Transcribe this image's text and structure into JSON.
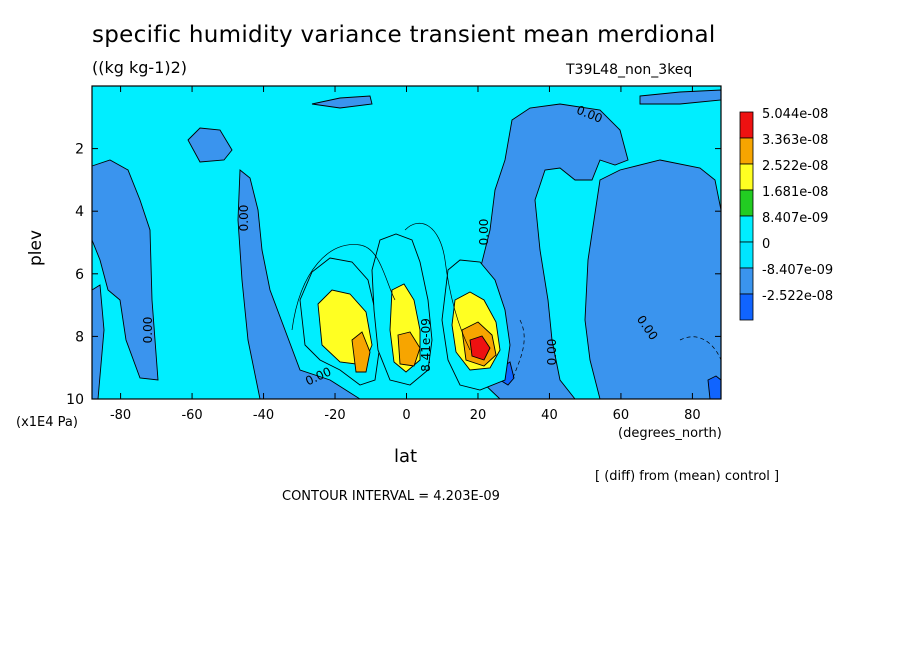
{
  "header": {
    "title": "specific humidity variance transient mean merdional",
    "units": "((kg kg-1)2)",
    "run": "T39L48_non_3keq"
  },
  "footer": {
    "diff": "[ (diff) from (mean) control ]",
    "contour_interval": "CONTOUR INTERVAL = 4.203E-09"
  },
  "chart_data": {
    "type": "heatmap",
    "title": "specific humidity variance transient mean merdional",
    "subtitle": "((kg kg-1)2)",
    "xlabel": "lat",
    "xunits": "(degrees_north)",
    "ylabel": "plev",
    "yunits": "(x1E4 Pa)",
    "xlim": [
      -88,
      88
    ],
    "ylim": [
      0,
      10
    ],
    "y_inverted": true,
    "xticks": [
      -80,
      -60,
      -40,
      -20,
      0,
      20,
      40,
      60,
      80
    ],
    "yticks": [
      2,
      4,
      6,
      8,
      10
    ],
    "legend": {
      "placement": "right",
      "labels": [
        "5.044e-08",
        "3.363e-08",
        "2.522e-08",
        "1.681e-08",
        "8.407e-09",
        "0",
        "-8.407e-09",
        "-2.522e-08"
      ],
      "colors": [
        "#ee1111",
        "#f7a500",
        "#ffff22",
        "#22cc22",
        "#00eeff",
        "#00e5ff",
        "#3a94ee",
        "#1064ff"
      ]
    },
    "contour_labels": [
      "0.00",
      "0.00",
      "0.00",
      "0.00",
      "0.00",
      "0.00",
      "0.00",
      "8.41e-09"
    ],
    "background_color": "#00eeff"
  }
}
